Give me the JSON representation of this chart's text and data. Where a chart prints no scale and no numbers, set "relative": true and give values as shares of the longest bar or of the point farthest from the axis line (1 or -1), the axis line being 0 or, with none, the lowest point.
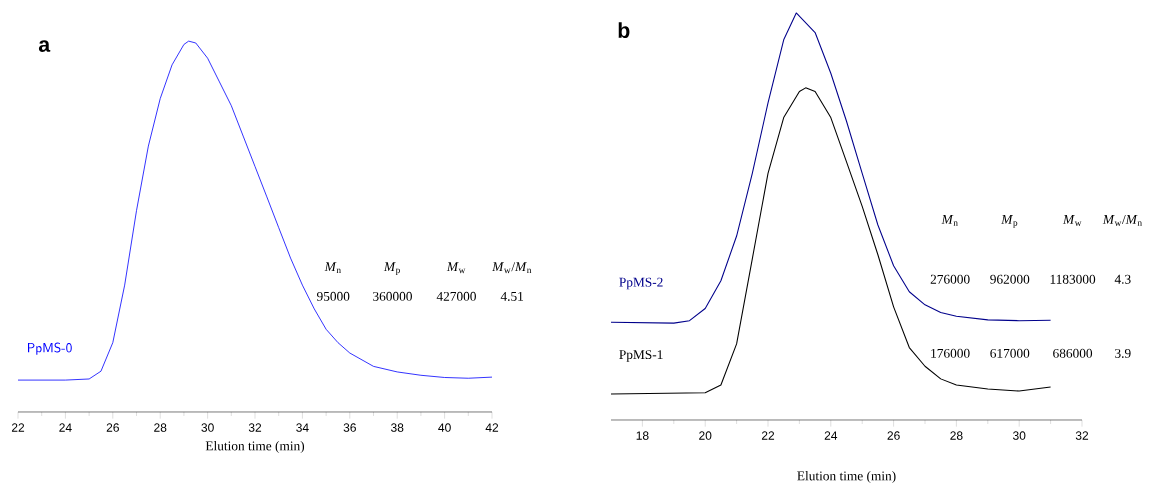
{
  "chart_data": [
    {
      "type": "line",
      "title": "a",
      "xlabel": "Elution time (min)",
      "relative": true,
      "xlim": [
        22,
        42
      ],
      "xticks": [
        22,
        24,
        26,
        28,
        30,
        32,
        34,
        36,
        38,
        40,
        42
      ],
      "series": [
        {
          "name": "PpMS-0",
          "color": "#0000ff",
          "x": [
            22,
            24,
            25,
            25.5,
            26,
            26.5,
            27,
            27.5,
            28,
            28.5,
            29,
            29.2,
            29.5,
            30,
            30.5,
            31,
            31.5,
            32,
            32.5,
            33,
            33.5,
            34,
            34.5,
            35,
            35.5,
            36,
            37,
            38,
            39,
            40,
            41,
            42
          ],
          "values": [
            0.086,
            0.086,
            0.089,
            0.11,
            0.187,
            0.342,
            0.543,
            0.717,
            0.845,
            0.936,
            0.991,
            1,
            0.995,
            0.954,
            0.89,
            0.826,
            0.744,
            0.662,
            0.58,
            0.497,
            0.415,
            0.342,
            0.278,
            0.223,
            0.187,
            0.159,
            0.123,
            0.108,
            0.099,
            0.093,
            0.091,
            0.094
          ]
        }
      ],
      "annotations": [
        "*M*$_{n}$",
        "*M*$_{p}$",
        "*M*$_{w}$",
        "*M*$_{w}$/*M*$_{n}$",
        "95000",
        "360000",
        "427000",
        "4.51"
      ]
    },
    {
      "type": "line",
      "title": "b",
      "xlabel": "Elution time (min)",
      "relative": true,
      "xlim": [
        17,
        32
      ],
      "xticks": [
        18,
        20,
        22,
        24,
        26,
        28,
        30,
        32
      ],
      "series": [
        {
          "name": "PpMS-2",
          "color": "#00008b",
          "x": [
            17,
            19,
            19.5,
            20,
            20.5,
            21,
            21.5,
            22,
            22.5,
            22.9,
            23.5,
            24,
            24.5,
            25,
            25.5,
            26,
            26.5,
            27,
            27.5,
            28,
            29,
            30,
            31
          ],
          "values": [
            0.24,
            0.238,
            0.244,
            0.274,
            0.342,
            0.452,
            0.606,
            0.779,
            0.934,
            1,
            0.952,
            0.852,
            0.734,
            0.606,
            0.479,
            0.379,
            0.315,
            0.283,
            0.264,
            0.255,
            0.246,
            0.244,
            0.245
          ]
        },
        {
          "name": "PpMS-1",
          "color": "#000000",
          "x": [
            17,
            20,
            20.5,
            21,
            21.5,
            22,
            22.5,
            23,
            23.2,
            23.5,
            24,
            24.5,
            25,
            25.5,
            26,
            26.5,
            27,
            27.5,
            28,
            29,
            30,
            31
          ],
          "values": [
            0.064,
            0.067,
            0.086,
            0.187,
            0.396,
            0.606,
            0.743,
            0.807,
            0.816,
            0.807,
            0.743,
            0.634,
            0.525,
            0.406,
            0.278,
            0.178,
            0.132,
            0.101,
            0.086,
            0.076,
            0.071,
            0.081
          ]
        }
      ],
      "annotations": [
        "*M*$_{n}$",
        "*M*$_{p}$",
        "*M*$_{w}$",
        "*M*$_{w}$/*M*$_{n}$",
        "276000",
        "962000",
        "1183000",
        "4.3",
        "176000",
        "617000",
        "686000",
        "3.9"
      ]
    }
  ]
}
